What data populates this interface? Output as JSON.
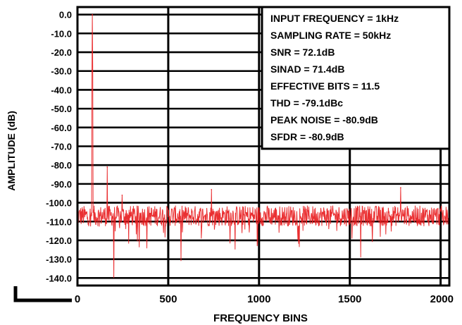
{
  "chart_data": {
    "type": "line",
    "title": "",
    "xlabel": "FREQUENCY BINS",
    "ylabel": "AMPLITUDE (dB)",
    "xlim": [
      0,
      2048
    ],
    "ylim": [
      -144,
      4
    ],
    "x_ticks": [
      0,
      500,
      1000,
      1500,
      2000
    ],
    "x_tick_labels": [
      "0",
      "500",
      "1000",
      "1500",
      "2000"
    ],
    "y_ticks": [
      0,
      -10,
      -20,
      -30,
      -40,
      -50,
      -60,
      -70,
      -80,
      -90,
      -100,
      -110,
      -120,
      -130,
      -140
    ],
    "y_tick_labels": [
      "0.0",
      "-10.0",
      "-20.0",
      "-30.0",
      "-40.0",
      "-50.0",
      "-60.0",
      "-70.0",
      "-80.0",
      "-90.0",
      "-100.0",
      "-110.0",
      "-120.0",
      "-130.0",
      "-140.0"
    ],
    "grid": true,
    "series_color": "#e8191c",
    "noise_floor_db": -105,
    "peaks": [
      {
        "x": 82,
        "y": 0
      },
      {
        "x": 164,
        "y": -81
      },
      {
        "x": 246,
        "y": -96
      },
      {
        "x": 738,
        "y": -93
      },
      {
        "x": 1780,
        "y": -92
      }
    ],
    "dips": [
      {
        "x": 200,
        "y": -140
      },
      {
        "x": 570,
        "y": -131
      },
      {
        "x": 1560,
        "y": -129
      }
    ],
    "annotations": [
      "INPUT FREQUENCY = 1kHz",
      "SAMPLING RATE = 50kHz",
      "SNR = 72.1dB",
      "SINAD = 71.4dB",
      "EFFECTIVE BITS = 11.5",
      "THD = -79.1dBc",
      "PEAK NOISE = -80.9dB",
      "SFDR = -80.9dB"
    ]
  }
}
